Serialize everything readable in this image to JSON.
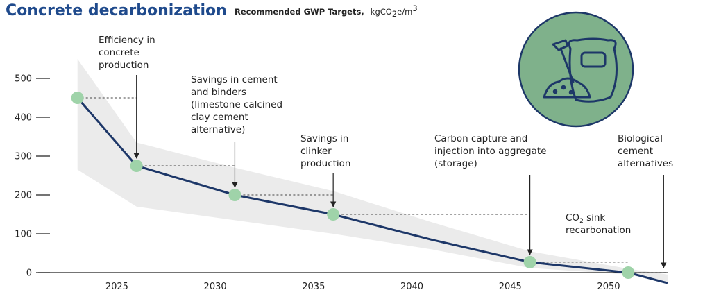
{
  "header": {
    "title": "Concrete decarbonization",
    "subtitle": "Recommended GWP Targets,",
    "unit_prefix": "kgCO",
    "unit_sub": "2",
    "unit_mid": "e/m",
    "unit_sup": "3"
  },
  "colors": {
    "line": "#1d3768",
    "marker": "#9fd3a9",
    "band": "#ebebeb",
    "icon_bg": "#7fb18b",
    "icon_stroke": "#1d3768",
    "title": "#1f4a8c"
  },
  "icon": "cement-bag-and-shovel-icon",
  "chart_data": {
    "type": "line",
    "xlim": [
      2021,
      2053
    ],
    "ylim": [
      -30,
      500
    ],
    "x_ticks": [
      2025,
      2030,
      2035,
      2040,
      2045,
      2050
    ],
    "y_ticks": [
      0,
      100,
      200,
      300,
      400,
      500
    ],
    "x_tick_labels": [
      "2025",
      "2030",
      "2035",
      "2040",
      "2045",
      "2050"
    ],
    "y_tick_labels": [
      "0",
      "100",
      "200",
      "300",
      "400",
      "500"
    ],
    "series": [
      {
        "x": [
          2023,
          2026,
          2031,
          2036,
          2041,
          2046,
          2051,
          2053
        ],
        "y": [
          450,
          275,
          200,
          150,
          85,
          27,
          0,
          -27
        ]
      }
    ],
    "markers": [
      {
        "x": 2023,
        "y": 450
      },
      {
        "x": 2026,
        "y": 275
      },
      {
        "x": 2031,
        "y": 200
      },
      {
        "x": 2036,
        "y": 150
      },
      {
        "x": 2046,
        "y": 27
      },
      {
        "x": 2051,
        "y": 0
      }
    ],
    "band": {
      "x": [
        2023,
        2026,
        2031,
        2036,
        2041,
        2046,
        2051,
        2053
      ],
      "upper": [
        550,
        335,
        270,
        210,
        130,
        55,
        10,
        -5
      ],
      "lower": [
        265,
        170,
        135,
        100,
        60,
        12,
        -5,
        -27
      ]
    },
    "annotations": [
      {
        "lines": [
          "Efficiency in",
          "concrete",
          "production"
        ],
        "x": 2026,
        "y": 275
      },
      {
        "lines": [
          "Savings in cement",
          "and binders",
          "(limestone calcined",
          "clay cement",
          "alternative)"
        ],
        "x": 2031,
        "y": 200
      },
      {
        "lines": [
          "Savings in",
          "clinker",
          "production"
        ],
        "x": 2036,
        "y": 150
      },
      {
        "lines": [
          "Carbon capture and",
          "injection into aggregate",
          "(storage)"
        ],
        "x": 2046,
        "y": 27
      },
      {
        "lines": [
          "Biological",
          "cement",
          "alternatives"
        ],
        "x": 2052.8,
        "y": -7
      },
      {
        "line1_prefix": "CO",
        "line1_sub": "2",
        "line1_suffix": " sink",
        "line2": "recarbonation",
        "x": 2051,
        "y": 0
      }
    ],
    "reference_lines": [
      {
        "from_x": 2023,
        "to_x": 2026,
        "y": 450
      },
      {
        "from_x": 2026,
        "to_x": 2031,
        "y": 275
      },
      {
        "from_x": 2031,
        "to_x": 2036,
        "y": 200
      },
      {
        "from_x": 2036,
        "to_x": 2046,
        "y": 150
      },
      {
        "from_x": 2046,
        "to_x": 2051,
        "y": 27
      },
      {
        "from_x": 2051,
        "to_x": 2053,
        "y": 0
      }
    ]
  }
}
